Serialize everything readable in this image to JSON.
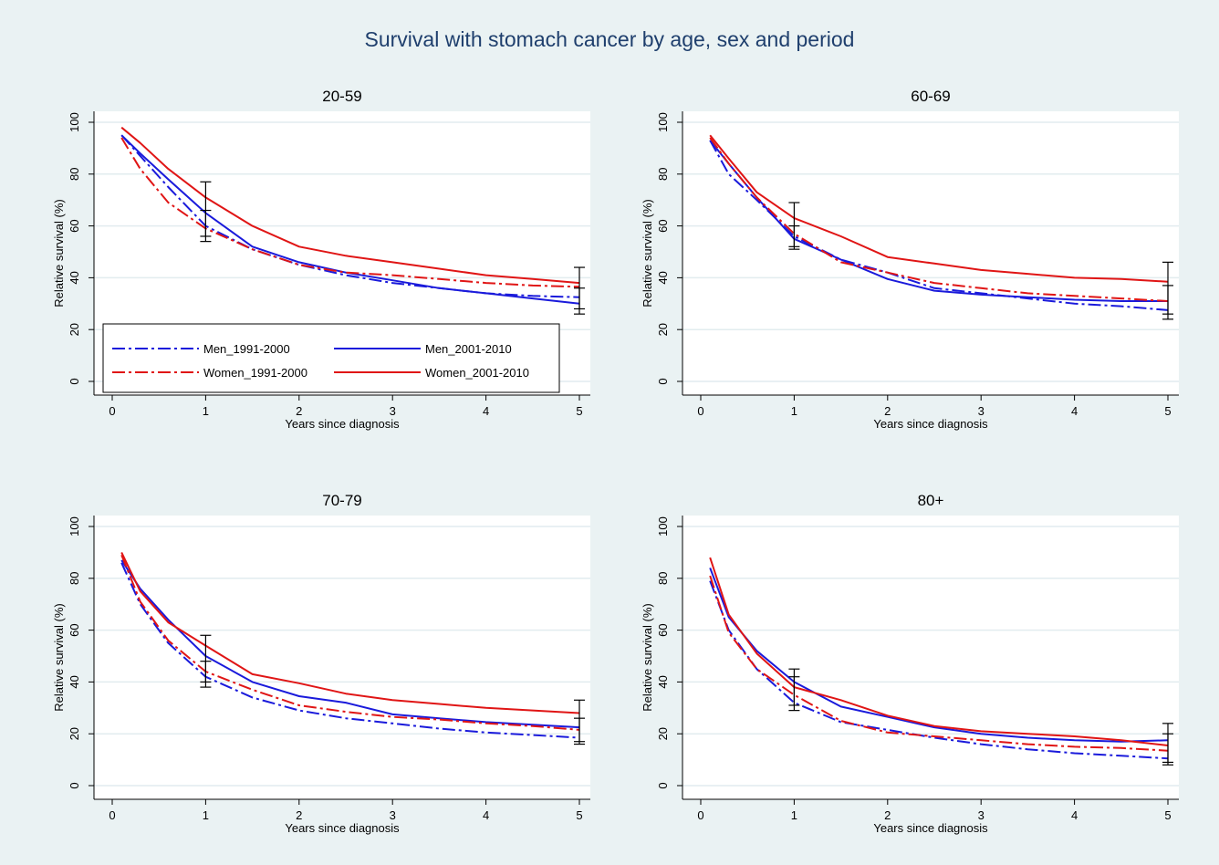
{
  "title": "Survival with stomach cancer by age, sex and period",
  "colors": {
    "background": "#eaf2f3",
    "plot_background": "#ffffff",
    "grid": "#e2ecef",
    "title": "#1f3f6d",
    "men": "#1a1adb",
    "women": "#e01515",
    "ci": "#000000"
  },
  "legend": {
    "placement": "inside-bottom-left of first panel",
    "entries": [
      {
        "label": "Men_1991-2000",
        "color": "#1a1adb",
        "dash": true
      },
      {
        "label": "Men_2001-2010",
        "color": "#1a1adb",
        "dash": false
      },
      {
        "label": "Women_1991-2000",
        "color": "#e01515",
        "dash": true
      },
      {
        "label": "Women_2001-2010",
        "color": "#e01515",
        "dash": false
      }
    ]
  },
  "chart_data": [
    {
      "type": "line",
      "title": "20-59",
      "xlabel": "Years since diagnosis",
      "ylabel": "Relative survival (%)",
      "xlim": [
        0,
        5
      ],
      "ylim": [
        0,
        100
      ],
      "xticks": [
        0,
        1,
        2,
        3,
        4,
        5
      ],
      "yticks": [
        0,
        20,
        40,
        60,
        80,
        100
      ],
      "grid": true,
      "series": [
        {
          "name": "Men_1991-2000",
          "dash": true,
          "x": [
            0.1,
            0.3,
            0.6,
            1,
            1.5,
            2,
            2.5,
            3,
            3.5,
            4,
            4.5,
            5
          ],
          "y": [
            95,
            87,
            75,
            60,
            51,
            45,
            41,
            38,
            36,
            34,
            33,
            32.5
          ]
        },
        {
          "name": "Men_2001-2010",
          "dash": false,
          "x": [
            0.1,
            0.3,
            0.6,
            1,
            1.5,
            2,
            2.5,
            3,
            3.5,
            4,
            4.5,
            5
          ],
          "y": [
            95,
            88,
            78,
            65,
            52,
            46,
            42,
            39,
            36,
            34,
            32,
            30
          ]
        },
        {
          "name": "Women_1991-2000",
          "dash": true,
          "x": [
            0.1,
            0.3,
            0.6,
            1,
            1.5,
            2,
            2.5,
            3,
            3.5,
            4,
            4.5,
            5
          ],
          "y": [
            94,
            82,
            69,
            59,
            51,
            45,
            42,
            41,
            39.5,
            38,
            37,
            36.5
          ]
        },
        {
          "name": "Women_2001-2010",
          "dash": false,
          "x": [
            0.1,
            0.3,
            0.6,
            1,
            1.5,
            2,
            2.5,
            3,
            3.5,
            4,
            4.5,
            5
          ],
          "y": [
            98,
            92,
            82,
            71,
            60,
            52,
            48.5,
            46,
            43.5,
            41,
            39.5,
            38
          ]
        }
      ],
      "error_bars": [
        {
          "x": 1,
          "low": 54,
          "high": 77
        },
        {
          "x": 1,
          "low": 56,
          "high": 66
        },
        {
          "x": 5,
          "low": 26,
          "high": 44
        },
        {
          "x": 5,
          "low": 28,
          "high": 36
        }
      ]
    },
    {
      "type": "line",
      "title": "60-69",
      "xlabel": "Years since diagnosis",
      "ylabel": "Relative survival (%)",
      "xlim": [
        0,
        5
      ],
      "ylim": [
        0,
        100
      ],
      "xticks": [
        0,
        1,
        2,
        3,
        4,
        5
      ],
      "yticks": [
        0,
        20,
        40,
        60,
        80,
        100
      ],
      "grid": true,
      "series": [
        {
          "name": "Men_1991-2000",
          "dash": true,
          "x": [
            0.1,
            0.3,
            0.6,
            1,
            1.5,
            2,
            2.5,
            3,
            3.5,
            4,
            4.5,
            5
          ],
          "y": [
            93,
            80,
            70,
            56,
            47,
            42,
            36,
            34,
            32,
            30,
            29,
            27.5
          ]
        },
        {
          "name": "Men_2001-2010",
          "dash": false,
          "x": [
            0.1,
            0.3,
            0.6,
            1,
            1.5,
            2,
            2.5,
            3,
            3.5,
            4,
            4.5,
            5
          ],
          "y": [
            93,
            84,
            71,
            55,
            47,
            39.5,
            35,
            33.5,
            32.5,
            31.5,
            31,
            31
          ]
        },
        {
          "name": "Women_1991-2000",
          "dash": true,
          "x": [
            0.1,
            0.3,
            0.6,
            1,
            1.5,
            2,
            2.5,
            3,
            3.5,
            4,
            4.5,
            5
          ],
          "y": [
            94,
            84,
            71,
            57,
            46,
            42,
            38,
            36,
            34,
            33,
            32,
            31
          ]
        },
        {
          "name": "Women_2001-2010",
          "dash": false,
          "x": [
            0.1,
            0.3,
            0.6,
            1,
            1.5,
            2,
            2.5,
            3,
            3.5,
            4,
            4.5,
            5
          ],
          "y": [
            95,
            86,
            73,
            63,
            56,
            48,
            45.5,
            43,
            41.5,
            40,
            39.5,
            38.5
          ]
        }
      ],
      "error_bars": [
        {
          "x": 1,
          "low": 51,
          "high": 69
        },
        {
          "x": 1,
          "low": 52,
          "high": 60
        },
        {
          "x": 5,
          "low": 24,
          "high": 46
        },
        {
          "x": 5,
          "low": 26,
          "high": 37
        }
      ]
    },
    {
      "type": "line",
      "title": "70-79",
      "xlabel": "Years since diagnosis",
      "ylabel": "Relative survival (%)",
      "xlim": [
        0,
        5
      ],
      "ylim": [
        0,
        100
      ],
      "xticks": [
        0,
        1,
        2,
        3,
        4,
        5
      ],
      "yticks": [
        0,
        20,
        40,
        60,
        80,
        100
      ],
      "grid": true,
      "series": [
        {
          "name": "Men_1991-2000",
          "dash": true,
          "x": [
            0.1,
            0.3,
            0.6,
            1,
            1.5,
            2,
            2.5,
            3,
            3.5,
            4,
            4.5,
            5
          ],
          "y": [
            86,
            70,
            55,
            42,
            34,
            29,
            26,
            24,
            22,
            20.5,
            19.5,
            18.5
          ]
        },
        {
          "name": "Men_2001-2010",
          "dash": false,
          "x": [
            0.1,
            0.3,
            0.6,
            1,
            1.5,
            2,
            2.5,
            3,
            3.5,
            4,
            4.5,
            5
          ],
          "y": [
            87,
            76,
            64,
            50,
            40,
            34.5,
            32,
            27.5,
            26,
            24.5,
            23.5,
            22.5
          ]
        },
        {
          "name": "Women_1991-2000",
          "dash": true,
          "x": [
            0.1,
            0.3,
            0.6,
            1,
            1.5,
            2,
            2.5,
            3,
            3.5,
            4,
            4.5,
            5
          ],
          "y": [
            89,
            71,
            56,
            44,
            37,
            31,
            28.5,
            26.5,
            25.5,
            24,
            23,
            21.5
          ]
        },
        {
          "name": "Women_2001-2010",
          "dash": false,
          "x": [
            0.1,
            0.3,
            0.6,
            1,
            1.5,
            2,
            2.5,
            3,
            3.5,
            4,
            4.5,
            5
          ],
          "y": [
            90,
            75,
            63,
            54,
            43,
            39.5,
            35.5,
            33,
            31.5,
            30,
            29,
            28
          ]
        }
      ],
      "error_bars": [
        {
          "x": 1,
          "low": 38,
          "high": 58
        },
        {
          "x": 1,
          "low": 40,
          "high": 48
        },
        {
          "x": 5,
          "low": 16,
          "high": 33
        },
        {
          "x": 5,
          "low": 17,
          "high": 26
        }
      ]
    },
    {
      "type": "line",
      "title": "80+",
      "xlabel": "Years since diagnosis",
      "ylabel": "Relative survival (%)",
      "xlim": [
        0,
        5
      ],
      "ylim": [
        0,
        100
      ],
      "xticks": [
        0,
        1,
        2,
        3,
        4,
        5
      ],
      "yticks": [
        0,
        20,
        40,
        60,
        80,
        100
      ],
      "grid": true,
      "series": [
        {
          "name": "Men_1991-2000",
          "dash": true,
          "x": [
            0.1,
            0.3,
            0.6,
            1,
            1.5,
            2,
            2.5,
            3,
            3.5,
            4,
            4.5,
            5
          ],
          "y": [
            79,
            60,
            45,
            32,
            24.5,
            21.5,
            18.5,
            16,
            14,
            12.5,
            11.5,
            10.5
          ]
        },
        {
          "name": "Men_2001-2010",
          "dash": false,
          "x": [
            0.1,
            0.3,
            0.6,
            1,
            1.5,
            2,
            2.5,
            3,
            3.5,
            4,
            4.5,
            5
          ],
          "y": [
            84,
            65,
            52,
            40,
            30.5,
            26.5,
            22.5,
            20,
            18.5,
            17.5,
            17,
            17.5
          ]
        },
        {
          "name": "Women_1991-2000",
          "dash": true,
          "x": [
            0.1,
            0.3,
            0.6,
            1,
            1.5,
            2,
            2.5,
            3,
            3.5,
            4,
            4.5,
            5
          ],
          "y": [
            81,
            59,
            45,
            35,
            25,
            20.5,
            19,
            17.5,
            16,
            15,
            14.5,
            13.5
          ]
        },
        {
          "name": "Women_2001-2010",
          "dash": false,
          "x": [
            0.1,
            0.3,
            0.6,
            1,
            1.5,
            2,
            2.5,
            3,
            3.5,
            4,
            4.5,
            5
          ],
          "y": [
            88,
            66,
            51,
            38,
            33,
            27,
            23,
            21,
            20,
            19,
            17.5,
            15.5
          ]
        }
      ],
      "error_bars": [
        {
          "x": 1,
          "low": 29,
          "high": 45
        },
        {
          "x": 1,
          "low": 31,
          "high": 42
        },
        {
          "x": 5,
          "low": 8,
          "high": 24
        },
        {
          "x": 5,
          "low": 9,
          "high": 20
        }
      ]
    }
  ]
}
